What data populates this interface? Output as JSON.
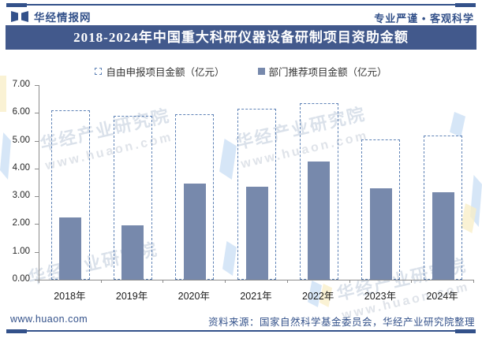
{
  "header": {
    "brand": "华经情报网",
    "tagline": "专业严谨 • 客观科学"
  },
  "title": "2018-2024年中国重大科研仪器设备研制项目资助金额",
  "chart_data": {
    "type": "bar",
    "title": "2018-2024年中国重大科研仪器设备研制项目资助金额",
    "categories": [
      "2018年",
      "2019年",
      "2020年",
      "2021年",
      "2022年",
      "2023年",
      "2024年"
    ],
    "series": [
      {
        "name": "自由申报项目金额（亿元）",
        "style": "dashed-outline",
        "values": [
          6.1,
          5.9,
          5.95,
          6.15,
          6.35,
          5.05,
          5.2
        ]
      },
      {
        "name": "部门推荐项目金额（亿元）",
        "style": "solid",
        "values": [
          2.25,
          1.95,
          3.45,
          3.35,
          4.25,
          3.3,
          3.15
        ]
      }
    ],
    "ylabel": "",
    "xlabel": "",
    "ylim": [
      0,
      7
    ],
    "yticks": [
      "0.00",
      "1.00",
      "2.00",
      "3.00",
      "4.00",
      "5.00",
      "6.00",
      "7.00"
    ],
    "grid": false,
    "legend_position": "top"
  },
  "footer": {
    "website": "www.huaon.com",
    "source": "资料来源：国家自然科学基金委员会，华经产业研究院整理"
  },
  "watermark": {
    "name": "华经产业研究院",
    "url": "www.huaon.com"
  },
  "colors": {
    "navy": "#33518A",
    "title_bar_bg": "#42598C",
    "bar_fill": "#7789AC",
    "bar_outline": "#5E82B6",
    "axis": "#8C8C8C",
    "text": "#333333"
  }
}
